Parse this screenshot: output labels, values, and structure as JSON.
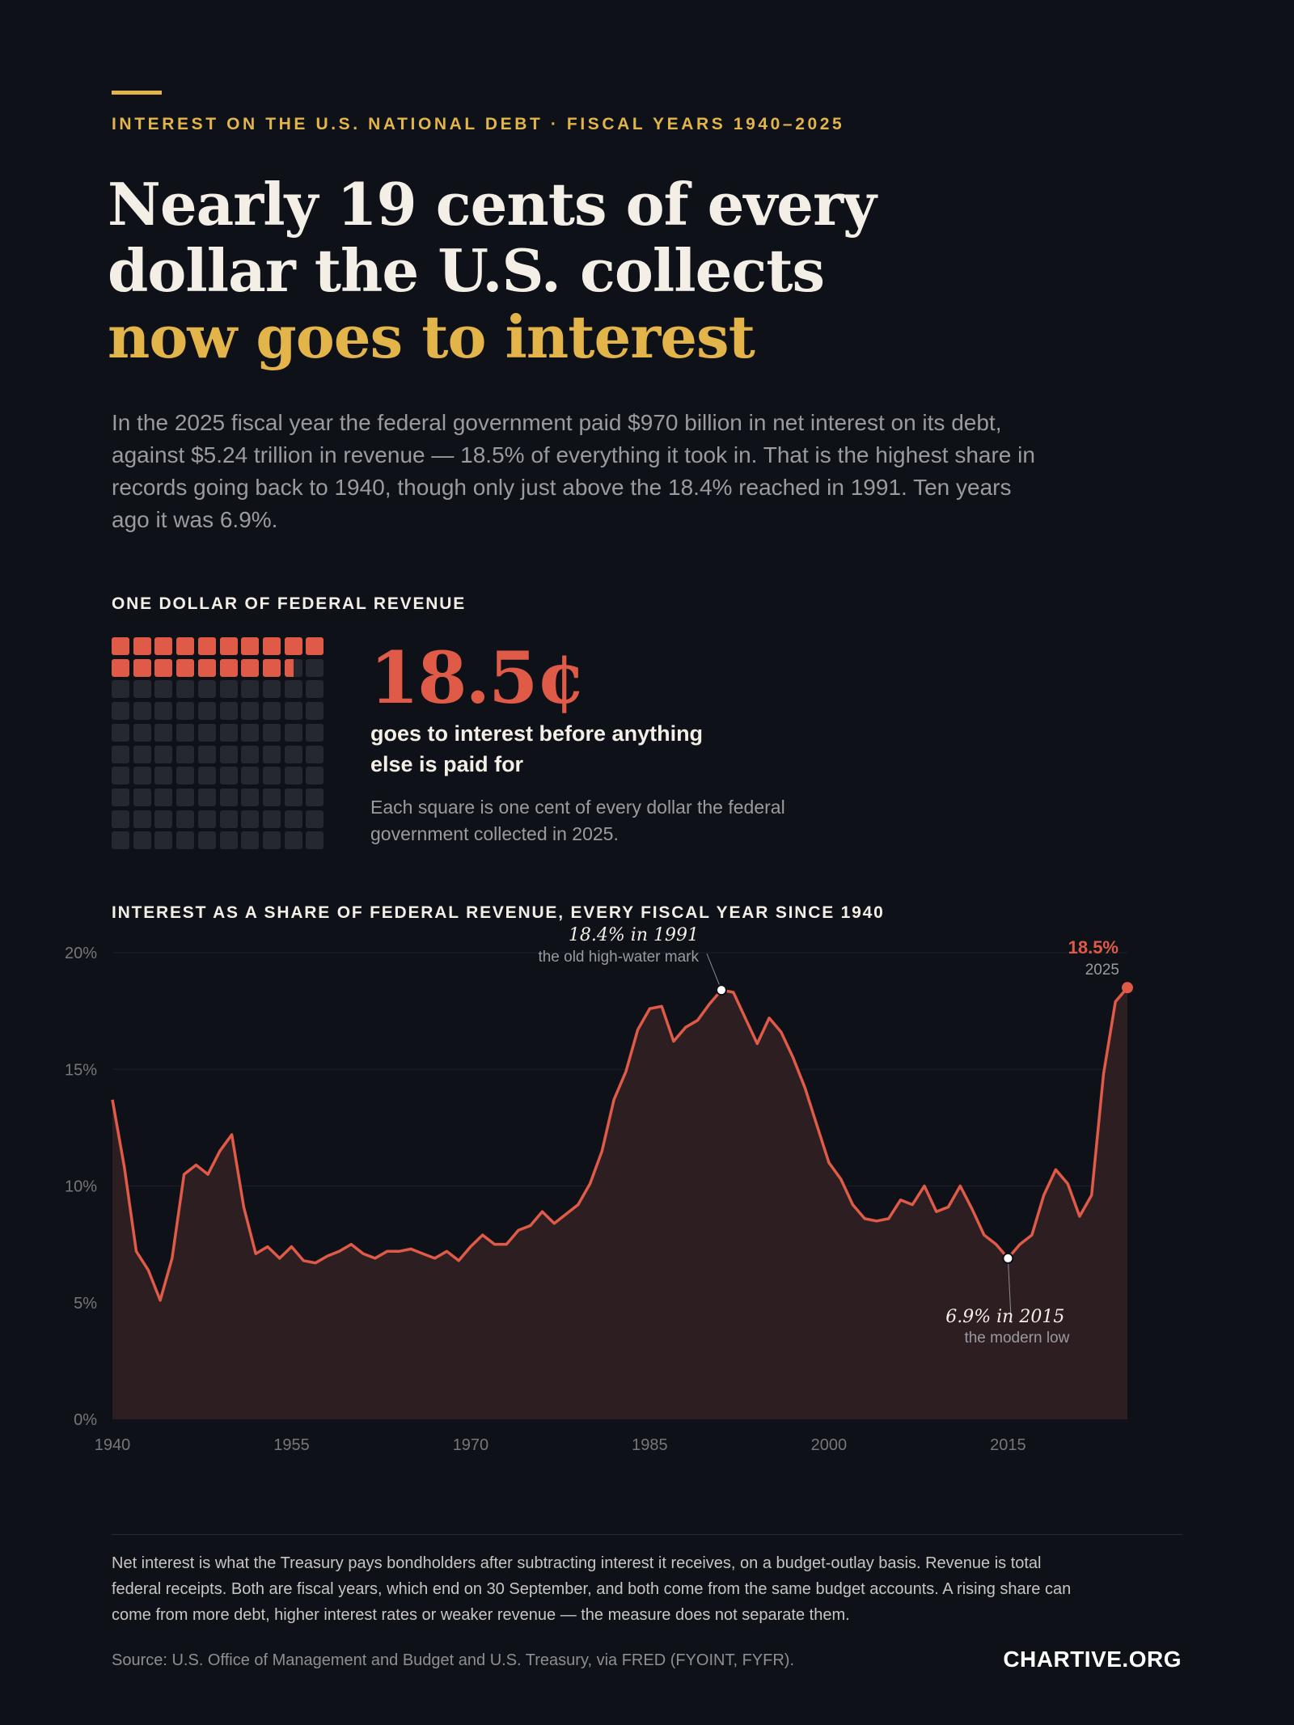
{
  "header": {
    "kicker": "INTEREST ON THE U.S. NATIONAL DEBT · FISCAL YEARS 1940–2025",
    "title_line1": "Nearly 19 cents of every",
    "title_line2": "dollar the U.S. collects",
    "title_highlight": "now goes to interest",
    "lede": "In the 2025 fiscal year the federal government paid $970 billion in net interest on its debt, against $5.24 trillion in revenue — 18.5% of everything it took in. That is the highest share in records going back to 1940, though only just above the 18.4% reached in 1991. Ten years ago it was 6.9%."
  },
  "waffle": {
    "label": "ONE DOLLAR OF FEDERAL REVENUE",
    "value": 18.5,
    "total_cells": 100,
    "big_value": "18.5¢",
    "caption": "goes to interest before anything else is paid for",
    "note": "Each square is one cent of every dollar the federal government collected in 2025."
  },
  "colors": {
    "background": "#0e1118",
    "accent_gold": "#e2b44a",
    "series_red": "#e05a48",
    "empty_cell": "#26282f"
  },
  "chart_title": "INTEREST AS A SHARE OF FEDERAL REVENUE, EVERY FISCAL YEAR SINCE 1940",
  "chart_data": {
    "type": "area",
    "x": [
      1940,
      1941,
      1942,
      1943,
      1944,
      1945,
      1946,
      1947,
      1948,
      1949,
      1950,
      1951,
      1952,
      1953,
      1954,
      1955,
      1956,
      1957,
      1958,
      1959,
      1960,
      1961,
      1962,
      1963,
      1964,
      1965,
      1966,
      1967,
      1968,
      1969,
      1970,
      1971,
      1972,
      1973,
      1974,
      1975,
      1976,
      1977,
      1978,
      1979,
      1980,
      1981,
      1982,
      1983,
      1984,
      1985,
      1986,
      1987,
      1988,
      1989,
      1990,
      1991,
      1992,
      1993,
      1994,
      1995,
      1996,
      1997,
      1998,
      1999,
      2000,
      2001,
      2002,
      2003,
      2004,
      2005,
      2006,
      2007,
      2008,
      2009,
      2010,
      2011,
      2012,
      2013,
      2014,
      2015,
      2016,
      2017,
      2018,
      2019,
      2020,
      2021,
      2022,
      2023,
      2024,
      2025
    ],
    "series": [
      {
        "values": [
          13.7,
          10.8,
          7.2,
          6.4,
          5.1,
          6.9,
          10.5,
          10.9,
          10.5,
          11.5,
          12.2,
          9.1,
          7.1,
          7.4,
          6.9,
          7.4,
          6.8,
          6.7,
          7.0,
          7.2,
          7.5,
          7.1,
          6.9,
          7.2,
          7.2,
          7.3,
          7.1,
          6.9,
          7.2,
          6.8,
          7.4,
          7.9,
          7.5,
          7.5,
          8.1,
          8.3,
          8.9,
          8.4,
          8.8,
          9.2,
          10.1,
          11.5,
          13.7,
          14.9,
          16.7,
          17.6,
          17.7,
          16.2,
          16.8,
          17.1,
          17.8,
          18.4,
          18.3,
          17.2,
          16.1,
          17.2,
          16.6,
          15.5,
          14.2,
          12.6,
          11.0,
          10.3,
          9.2,
          8.6,
          8.5,
          8.6,
          9.4,
          9.2,
          10.0,
          8.9,
          9.1,
          10.0,
          9.0,
          7.9,
          7.5,
          6.9,
          7.5,
          7.9,
          9.6,
          10.7,
          10.1,
          8.7,
          9.6,
          14.8,
          17.9,
          18.5
        ]
      }
    ],
    "ylim": [
      0,
      20
    ],
    "yticks": [
      "0%",
      "5%",
      "10%",
      "15%",
      "20%"
    ],
    "xticks": [
      "1940",
      "1955",
      "1970",
      "1985",
      "2000",
      "2015"
    ],
    "grid": true,
    "annotations": [
      {
        "year": 1991,
        "value": 18.4,
        "label": "18.4% in 1991",
        "sublabel": "the old high-water mark"
      },
      {
        "year": 2015,
        "value": 6.9,
        "label": "6.9% in 2015",
        "sublabel": "the modern low"
      },
      {
        "year": 2025,
        "value": 18.5,
        "label": "18.5%",
        "sublabel": "2025"
      }
    ]
  },
  "footer": {
    "note": "Net interest is what the Treasury pays bondholders after subtracting interest it receives, on a budget-outlay basis. Revenue is total federal receipts. Both are fiscal years, which end on 30 September, and both come from the same budget accounts. A rising share can come from more debt, higher interest rates or weaker revenue — the measure does not separate them.",
    "source": "Source: U.S. Office of Management and Budget and U.S. Treasury, via FRED (FYOINT, FYFR).",
    "brand": "CHARTIVE.ORG"
  }
}
